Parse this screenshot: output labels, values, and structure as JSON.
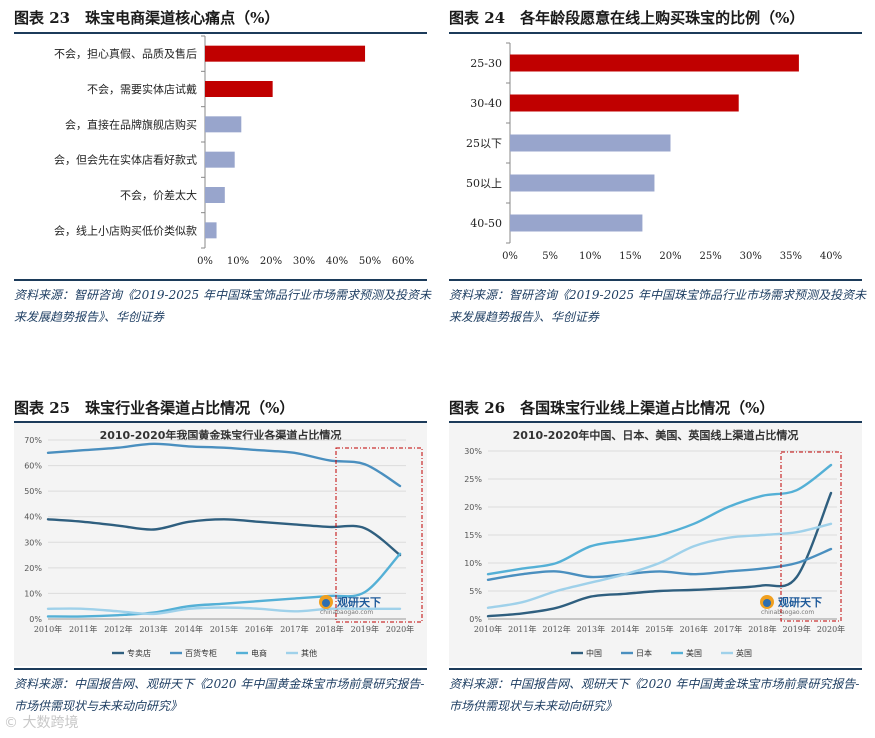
{
  "panels": [
    {
      "title": "图表 23　珠宝电商渠道核心痛点（%）",
      "source": "资料来源：智研咨询《2019-2025 年中国珠宝饰品行业市场需求预测及投资未来发展趋势报告》、华创证券"
    },
    {
      "title": "图表 24　各年龄段愿意在线上购买珠宝的比例（%）",
      "source": "资料来源：智研咨询《2019-2025 年中国珠宝饰品行业市场需求预测及投资未来发展趋势报告》、华创证券"
    },
    {
      "title": "图表 25　珠宝行业各渠道占比情况（%）",
      "source": "资料来源：中国报告网、观研天下《2020 年中国黄金珠宝市场前景研究报告-市场供需现状与未来动向研究》"
    },
    {
      "title": "图表 26　各国珠宝行业线上渠道占比情况（%）",
      "source": "资料来源：中国报告网、观研天下《2020 年中国黄金珠宝市场前景研究报告-市场供需现状与未来动向研究》"
    }
  ],
  "watermark": "大数跨境",
  "logo_text": "观研天下",
  "logo_url": "chinabaogao.com",
  "colors": {
    "red": "#c00000",
    "blue": "#98a5cc",
    "dark": "#2f5f7f",
    "navy": "#1c3b5a"
  },
  "chart_data": [
    {
      "type": "bar",
      "orientation": "horizontal",
      "categories": [
        "不会，担心真假、品质及售后",
        "不会，需要实体店试戴",
        "会，直接在品牌旗舰店购买",
        "会，但会先在实体店看好款式",
        "不会，价差太大",
        "会，线上小店购买低价类似款"
      ],
      "values": [
        48.5,
        20.5,
        11,
        9,
        6,
        3.5
      ],
      "highlight": [
        true,
        true,
        false,
        false,
        false,
        false
      ],
      "xlim": [
        0,
        60
      ],
      "xticks": [
        "0%",
        "10%",
        "20%",
        "30%",
        "40%",
        "50%",
        "60%"
      ]
    },
    {
      "type": "bar",
      "orientation": "horizontal",
      "categories": [
        "25-30",
        "30-40",
        "25以下",
        "50以上",
        "40-50"
      ],
      "values": [
        36,
        28.5,
        20,
        18,
        16.5
      ],
      "highlight": [
        true,
        true,
        false,
        false,
        false
      ],
      "xlim": [
        0,
        40
      ],
      "xticks": [
        "0%",
        "5%",
        "10%",
        "15%",
        "20%",
        "25%",
        "30%",
        "35%",
        "40%"
      ]
    },
    {
      "type": "line",
      "title": "2010-2020年我国黄金珠宝行业各渠道占比情况",
      "x": [
        "2010年",
        "2011年",
        "2012年",
        "2013年",
        "2014年",
        "2015年",
        "2016年",
        "2017年",
        "2018年",
        "2019年",
        "2020年"
      ],
      "ylim": [
        0,
        70
      ],
      "yticks": [
        "0%",
        "10%",
        "20%",
        "30%",
        "40%",
        "50%",
        "60%",
        "70%"
      ],
      "series": [
        {
          "name": "专卖店",
          "color": "#2f5f7f",
          "values": [
            39,
            38,
            36.5,
            35,
            38,
            39,
            38,
            37,
            36,
            35.5,
            25
          ]
        },
        {
          "name": "百货专柜",
          "color": "#4a8fbf",
          "values": [
            65,
            66,
            67,
            68.5,
            67.5,
            67,
            66,
            65,
            62,
            60.5,
            52
          ]
        },
        {
          "name": "电商",
          "color": "#54b0d6",
          "values": [
            1,
            1,
            1.5,
            2.5,
            5,
            6,
            7,
            8,
            9,
            10.5,
            25.5
          ]
        },
        {
          "name": "其他",
          "color": "#9fd1ea",
          "values": [
            4,
            4,
            3,
            2,
            4,
            4.5,
            4,
            3,
            4,
            4,
            4
          ]
        }
      ],
      "legend": [
        "专卖店",
        "百货专柜",
        "电商",
        "其他"
      ]
    },
    {
      "type": "line",
      "title": "2010-2020年中国、日本、美国、英国线上渠道占比情况",
      "x": [
        "2010年",
        "2011年",
        "2012年",
        "2013年",
        "2014年",
        "2015年",
        "2016年",
        "2017年",
        "2018年",
        "2019年",
        "2020年"
      ],
      "ylim": [
        0,
        30
      ],
      "yticks": [
        "0%",
        "5%",
        "10%",
        "15%",
        "20%",
        "25%",
        "30%"
      ],
      "series": [
        {
          "name": "中国",
          "color": "#2f5f7f",
          "values": [
            0.5,
            1,
            2,
            4,
            4.5,
            5,
            5.2,
            5.5,
            6,
            7.5,
            22.5
          ]
        },
        {
          "name": "日本",
          "color": "#4a8fbf",
          "values": [
            7,
            8,
            8.5,
            7.5,
            8,
            8.5,
            8,
            8.5,
            9,
            10,
            12.5
          ]
        },
        {
          "name": "美国",
          "color": "#54b0d6",
          "values": [
            8,
            9,
            10,
            13,
            14,
            15,
            17,
            20,
            22,
            23,
            27.5
          ]
        },
        {
          "name": "英国",
          "color": "#9fd1ea",
          "values": [
            2,
            3,
            5,
            6.5,
            8,
            10,
            13,
            14.5,
            15,
            15.5,
            17
          ]
        }
      ],
      "legend": [
        "中国",
        "日本",
        "美国",
        "英国"
      ]
    }
  ]
}
